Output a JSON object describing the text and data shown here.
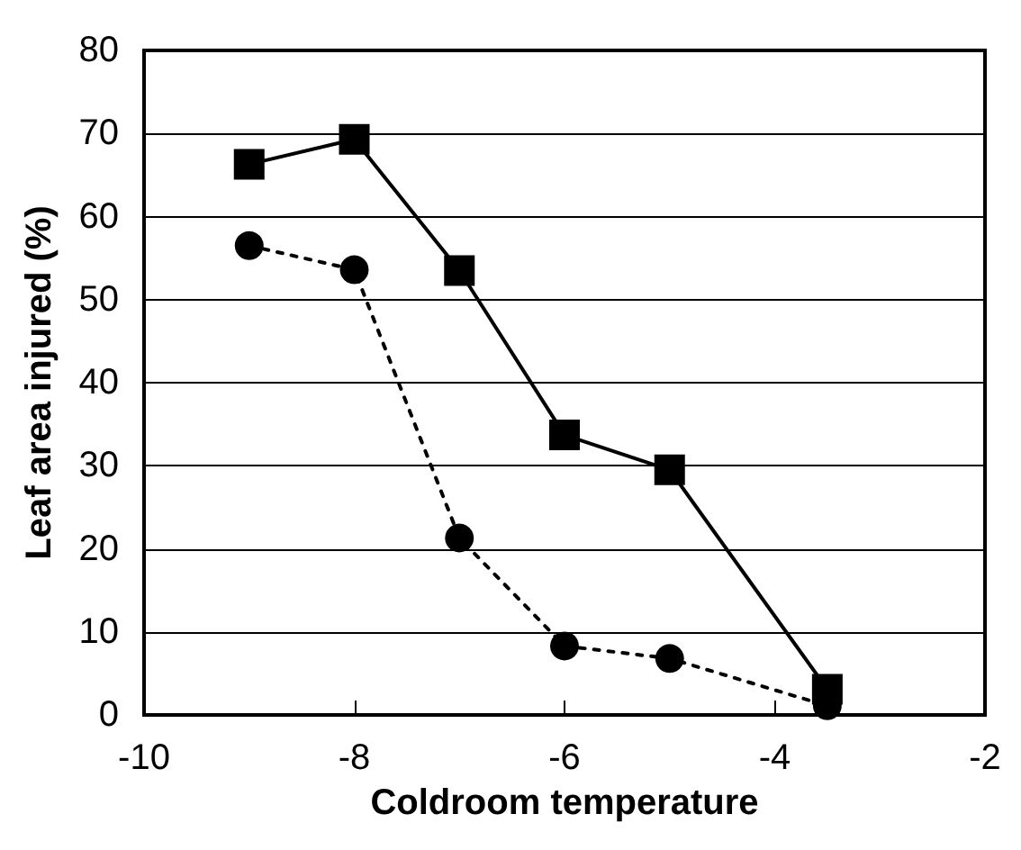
{
  "chart_data": {
    "type": "line",
    "xlabel": "Coldroom temperature",
    "ylabel": "Leaf area injured (%)",
    "xlim": [
      -10,
      -2
    ],
    "xticks": [
      -10,
      -8,
      -6,
      -4,
      -2
    ],
    "ylim": [
      0,
      80
    ],
    "yticks": [
      0,
      10,
      20,
      30,
      40,
      50,
      60,
      70,
      80
    ],
    "grid": "y",
    "series": [
      {
        "color": "#000000",
        "marker": "square",
        "line_style": "solid",
        "x": [
          -9,
          -8,
          -7,
          -6,
          -5,
          -3.5
        ],
        "values": [
          66.3,
          69.3,
          53.5,
          33.7,
          29.5,
          3.1
        ]
      },
      {
        "color": "#000000",
        "marker": "circle",
        "line_style": "dotted",
        "x": [
          -9,
          -8,
          -7,
          -6,
          -5,
          -3.5
        ],
        "values": [
          56.5,
          53.6,
          21.3,
          8.3,
          6.8,
          1.1
        ]
      }
    ]
  }
}
